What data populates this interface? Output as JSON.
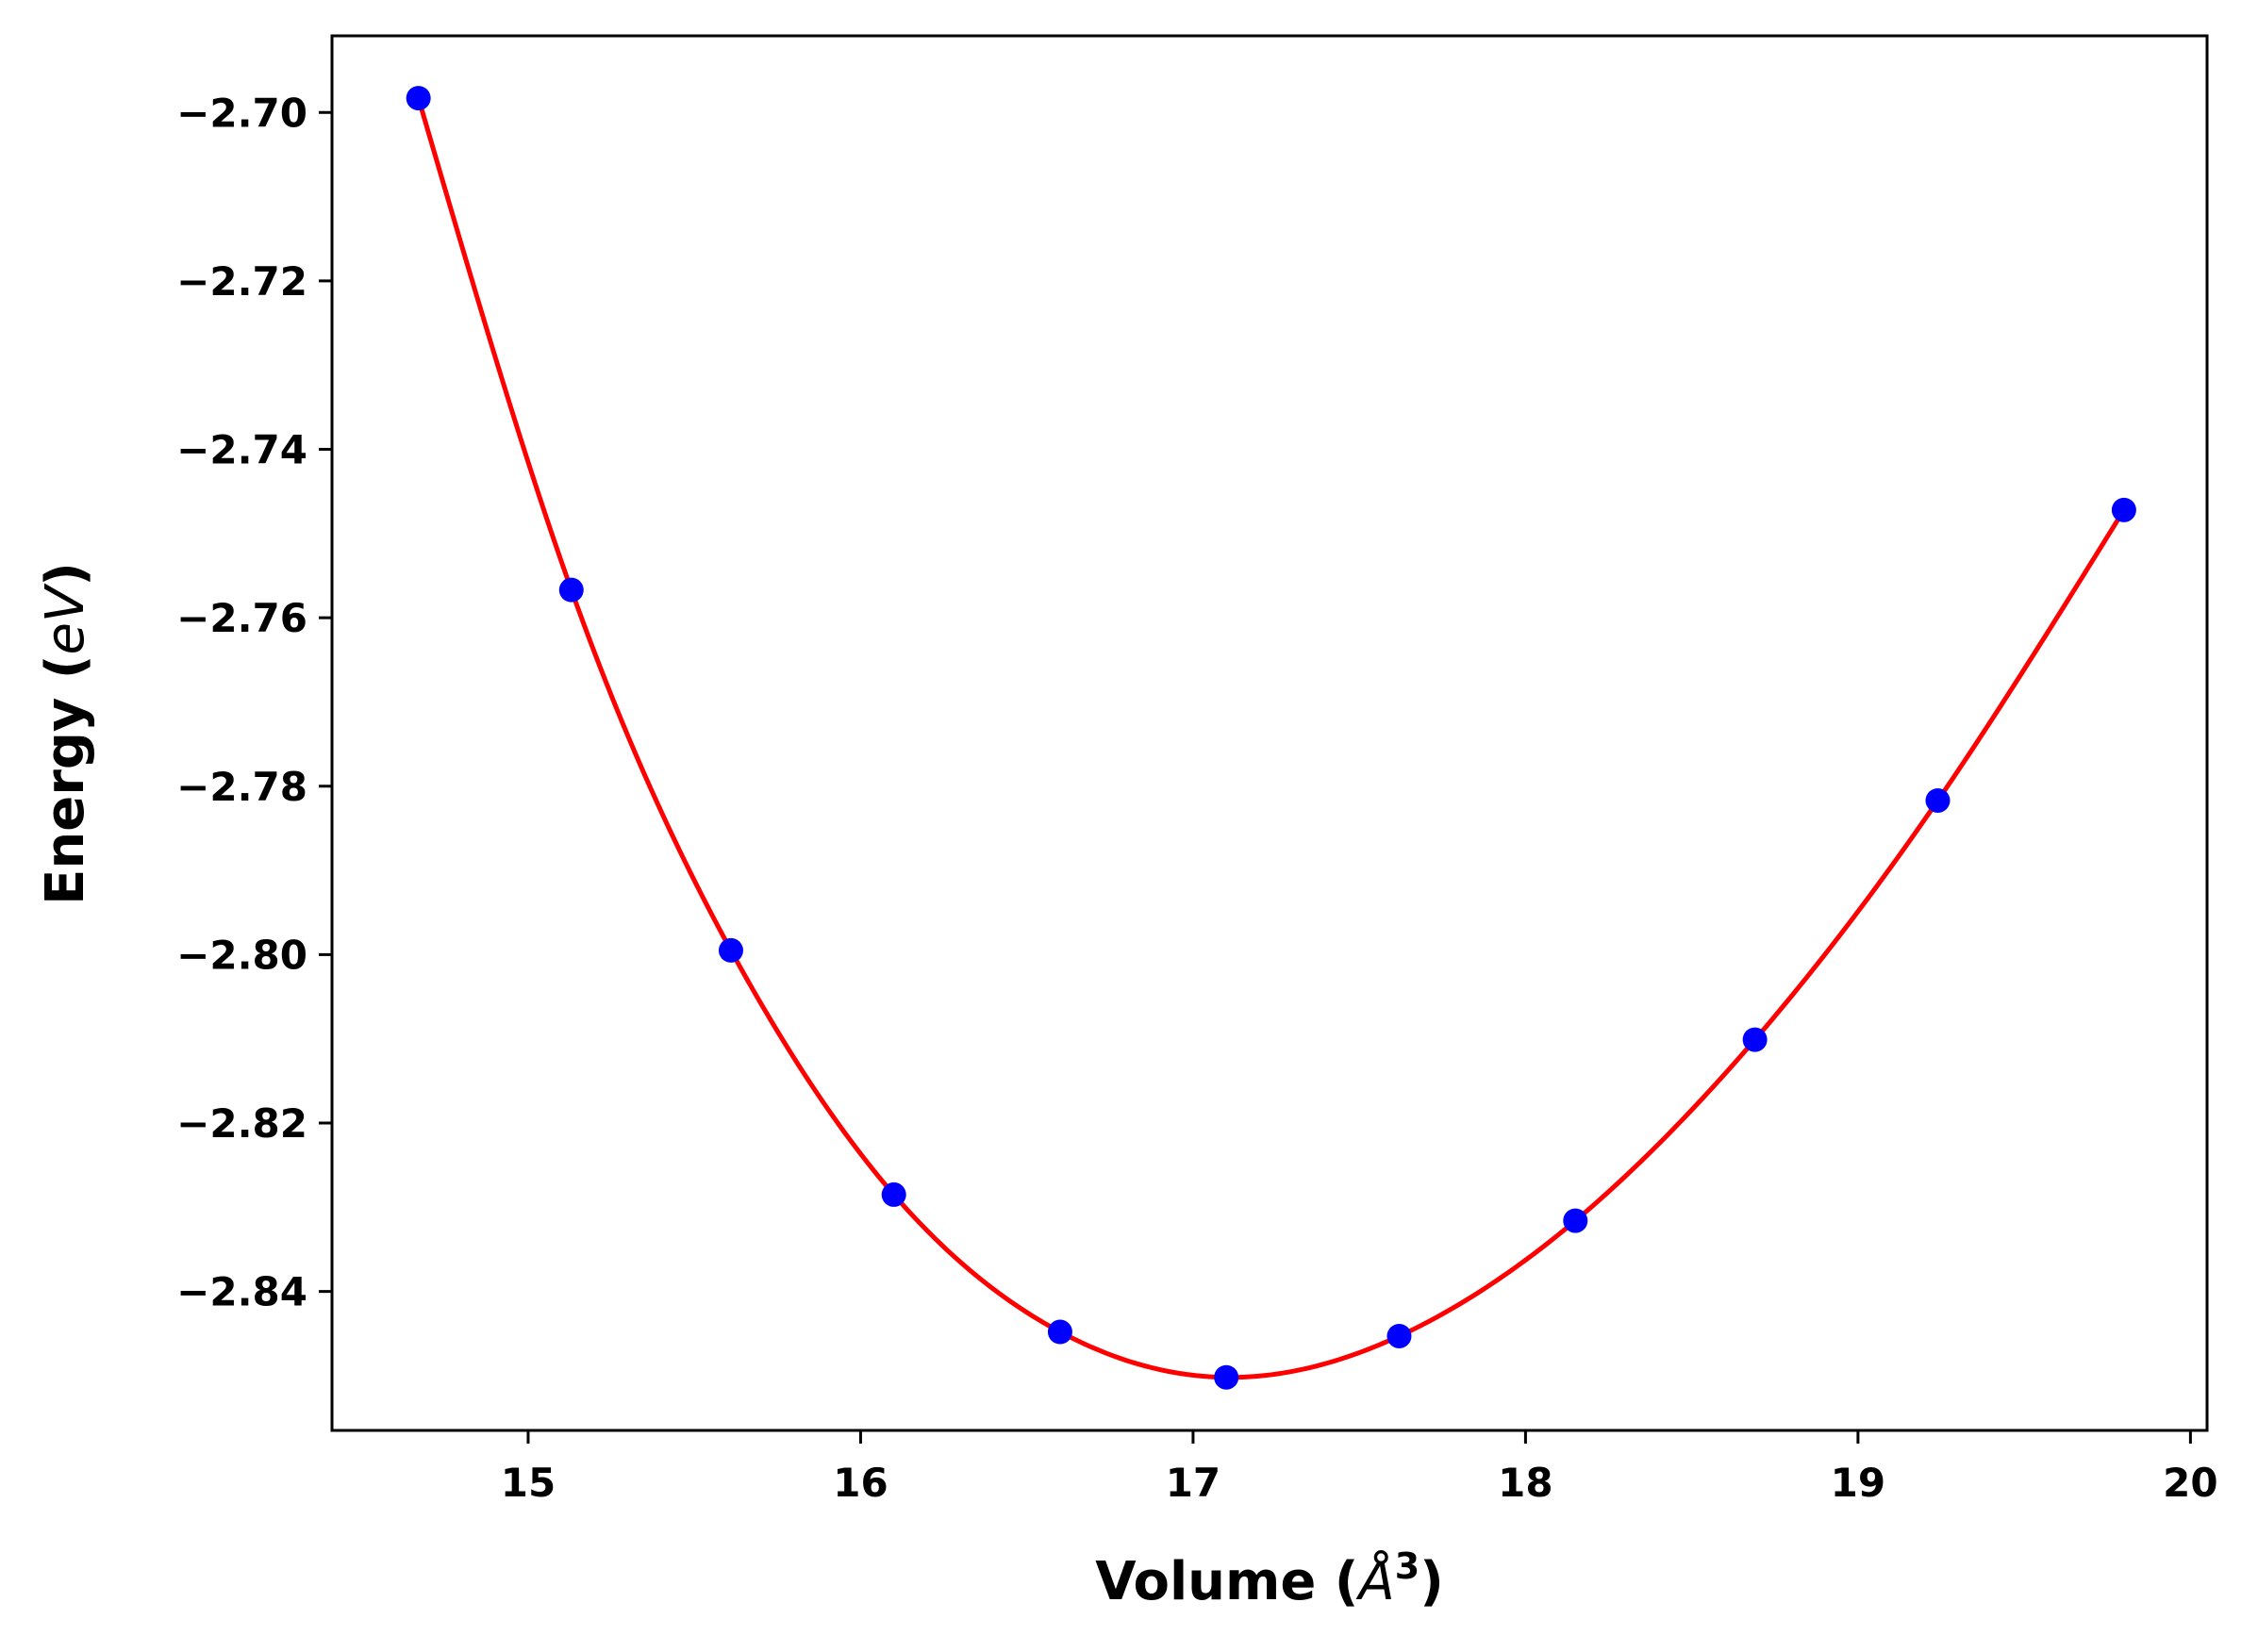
{
  "chart_data": {
    "type": "line",
    "title": "",
    "xlabel": {
      "text": "Volume (",
      "unit": "Å",
      "sup": "3",
      "close": ")"
    },
    "ylabel": {
      "text": "Energy (",
      "unit": "eV",
      "close": ")"
    },
    "xlim": [
      14.41,
      20.05
    ],
    "ylim": [
      -2.8565,
      -2.6909
    ],
    "xticks": [
      15,
      16,
      17,
      18,
      19,
      20
    ],
    "xtick_labels": [
      "15",
      "16",
      "17",
      "18",
      "19",
      "20"
    ],
    "yticks": [
      -2.7,
      -2.72,
      -2.74,
      -2.76,
      -2.78,
      -2.8,
      -2.82,
      -2.84
    ],
    "ytick_labels": [
      "−2.70",
      "−2.72",
      "−2.74",
      "−2.76",
      "−2.78",
      "−2.80",
      "−2.82",
      "−2.84"
    ],
    "grid": false,
    "series": [
      {
        "kind": "scatter",
        "color": "#0000ff",
        "x": [
          14.67,
          15.13,
          15.61,
          16.1,
          16.6,
          17.1,
          17.62,
          18.15,
          18.69,
          19.24,
          19.8
        ],
        "y": [
          -2.6983,
          -2.7567,
          -2.7995,
          -2.8285,
          -2.8448,
          -2.8502,
          -2.8453,
          -2.8316,
          -2.8101,
          -2.7817,
          -2.7472
        ]
      },
      {
        "kind": "line",
        "color": "#ff0000",
        "fit": "cubic-spline",
        "x": [
          14.67,
          15.13,
          15.61,
          16.1,
          16.6,
          17.1,
          17.62,
          18.15,
          18.69,
          19.24,
          19.8
        ],
        "y": [
          -2.6983,
          -2.7567,
          -2.7995,
          -2.8285,
          -2.8448,
          -2.8502,
          -2.8453,
          -2.8316,
          -2.8101,
          -2.7817,
          -2.7472
        ]
      }
    ]
  }
}
